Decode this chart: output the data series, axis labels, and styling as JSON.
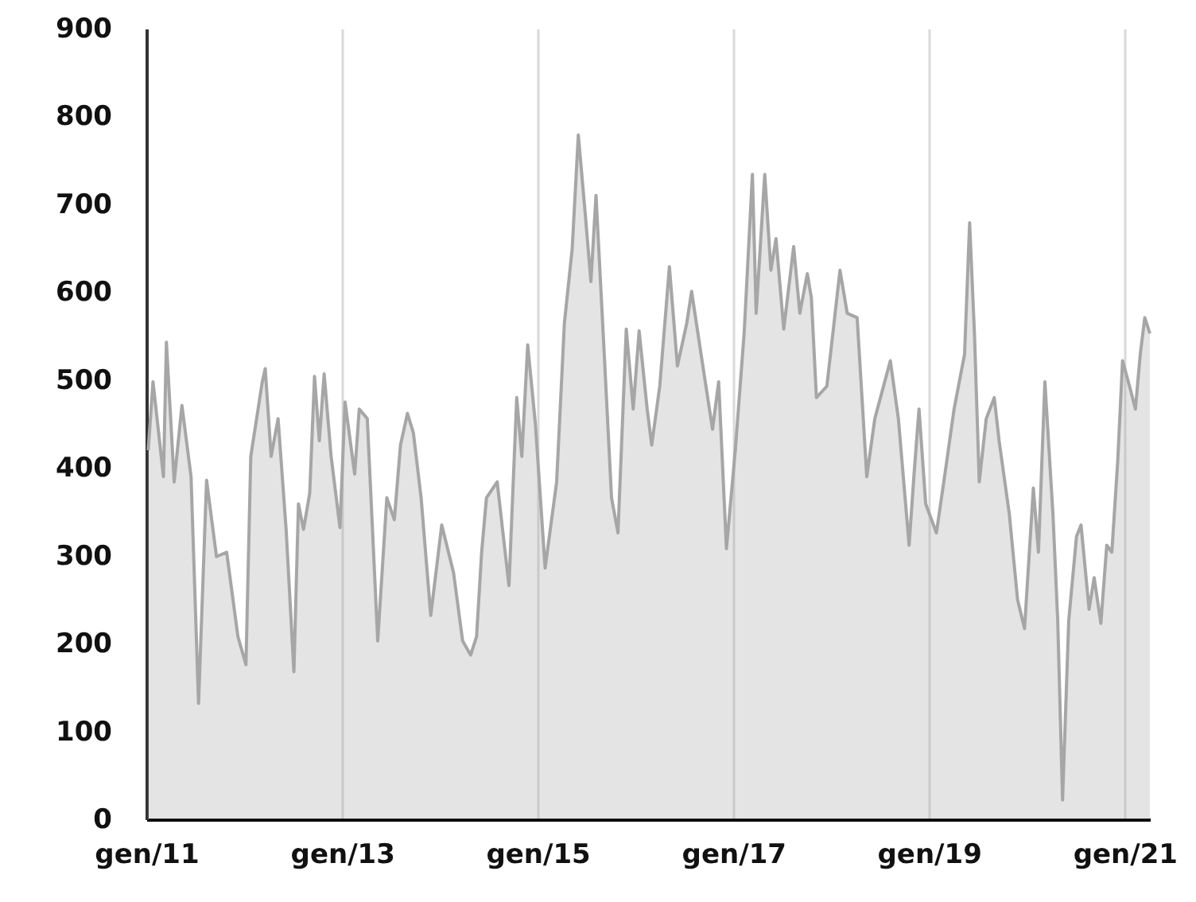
{
  "chart_data": {
    "type": "area",
    "color": "#a6a6a6",
    "grid": "x",
    "xlim": [
      "2011-01-01",
      "2021-04-05"
    ],
    "ylim": [
      0,
      900
    ],
    "xticks": [
      {
        "value": "2011-01-01",
        "label": "gen/11"
      },
      {
        "value": "2013-01-01",
        "label": "gen/13"
      },
      {
        "value": "2015-01-01",
        "label": "gen/15"
      },
      {
        "value": "2017-01-01",
        "label": "gen/17"
      },
      {
        "value": "2019-01-01",
        "label": "gen/19"
      },
      {
        "value": "2021-01-01",
        "label": "gen/21"
      }
    ],
    "yticks": [
      0,
      100,
      200,
      300,
      400,
      500,
      600,
      700,
      800,
      900
    ],
    "x": [
      "2011-01-08",
      "2011-01-26",
      "2011-03-06",
      "2011-03-17",
      "2011-04-15",
      "2011-05-14",
      "2011-06-17",
      "2011-07-15",
      "2011-08-14",
      "2011-09-20",
      "2011-10-28",
      "2011-12-09",
      "2012-01-08",
      "2012-01-26",
      "2012-03-09",
      "2012-03-20",
      "2012-04-11",
      "2012-05-07",
      "2012-06-06",
      "2012-07-05",
      "2012-07-22",
      "2012-08-10",
      "2012-09-02",
      "2012-09-20",
      "2012-10-08",
      "2012-10-26",
      "2012-11-21",
      "2012-12-24",
      "2013-01-12",
      "2013-02-17",
      "2013-03-06",
      "2013-04-05",
      "2013-05-14",
      "2013-06-17",
      "2013-07-15",
      "2013-08-07",
      "2013-09-02",
      "2013-09-24",
      "2013-10-23",
      "2013-11-28",
      "2014-01-08",
      "2014-02-21",
      "2014-03-27",
      "2014-04-26",
      "2014-05-18",
      "2014-06-06",
      "2014-06-24",
      "2014-08-03",
      "2014-09-16",
      "2014-10-15",
      "2014-11-03",
      "2014-11-25",
      "2014-12-24",
      "2015-01-29",
      "2015-03-13",
      "2015-04-11",
      "2015-05-10",
      "2015-06-02",
      "2015-06-27",
      "2015-07-19",
      "2015-08-07",
      "2015-09-06",
      "2015-10-04",
      "2015-10-28",
      "2015-11-28",
      "2015-12-24",
      "2016-01-15",
      "2016-02-14",
      "2016-03-02",
      "2016-04-01",
      "2016-05-07",
      "2016-06-06",
      "2016-07-11",
      "2016-07-29",
      "2016-08-28",
      "2016-10-15",
      "2016-11-07",
      "2016-12-06",
      "2017-01-08",
      "2017-02-10",
      "2017-03-13",
      "2017-03-27",
      "2017-04-28",
      "2017-05-21",
      "2017-06-09",
      "2017-07-08",
      "2017-08-14",
      "2017-09-06",
      "2017-10-04",
      "2017-10-19",
      "2017-11-07",
      "2017-12-16",
      "2018-02-03",
      "2018-03-02",
      "2018-04-08",
      "2018-05-14",
      "2018-06-13",
      "2018-08-10",
      "2018-09-09",
      "2018-10-19",
      "2018-11-07",
      "2018-11-25",
      "2018-12-20",
      "2019-01-29",
      "2019-03-06",
      "2019-04-05",
      "2019-05-14",
      "2019-06-02",
      "2019-06-20",
      "2019-07-08",
      "2019-08-03",
      "2019-09-02",
      "2019-09-20",
      "2019-10-28",
      "2019-11-28",
      "2019-12-24",
      "2020-01-26",
      "2020-02-14",
      "2020-03-09",
      "2020-04-08",
      "2020-04-26",
      "2020-05-14",
      "2020-06-06",
      "2020-07-05",
      "2020-07-22",
      "2020-08-21",
      "2020-09-09",
      "2020-10-04",
      "2020-10-26",
      "2020-11-14",
      "2020-12-06",
      "2020-12-24",
      "2021-01-19",
      "2021-02-10",
      "2021-02-28",
      "2021-03-17",
      "2021-04-05"
    ],
    "values": [
      420,
      498,
      390,
      543,
      384,
      471,
      390,
      132,
      386,
      299,
      304,
      208,
      176,
      413,
      498,
      513,
      413,
      456,
      330,
      168,
      359,
      330,
      371,
      504,
      431,
      507,
      413,
      332,
      475,
      393,
      467,
      456,
      203,
      366,
      341,
      426,
      462,
      440,
      366,
      232,
      335,
      281,
      203,
      187,
      208,
      304,
      366,
      384,
      266,
      480,
      413,
      540,
      449,
      286,
      384,
      565,
      649,
      779,
      692,
      612,
      710,
      534,
      366,
      326,
      558,
      467,
      556,
      467,
      426,
      493,
      629,
      516,
      565,
      601,
      540,
      444,
      498,
      308,
      420,
      553,
      734,
      576,
      734,
      625,
      661,
      558,
      652,
      576,
      621,
      594,
      480,
      493,
      625,
      576,
      571,
      390,
      456,
      522,
      456,
      312,
      395,
      467,
      359,
      326,
      402,
      467,
      529,
      679,
      553,
      384,
      456,
      480,
      431,
      348,
      250,
      217,
      377,
      304,
      498,
      348,
      226,
      22,
      226,
      322,
      335,
      239,
      275,
      223,
      312,
      304,
      408,
      522,
      493,
      467,
      529,
      571,
      553
    ]
  }
}
